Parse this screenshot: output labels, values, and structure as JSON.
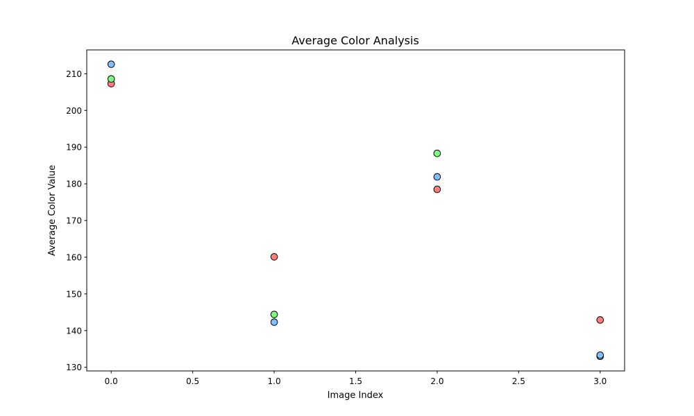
{
  "chart_data": {
    "type": "scatter",
    "title": "Average Color Analysis",
    "xlabel": "Image Index",
    "ylabel": "Average Color Value",
    "xlim": [
      -0.15,
      3.15
    ],
    "ylim": [
      129,
      216.5
    ],
    "xticks": [
      0.0,
      0.5,
      1.0,
      1.5,
      2.0,
      2.5,
      3.0
    ],
    "xtick_labels": [
      "0.0",
      "0.5",
      "1.0",
      "1.5",
      "2.0",
      "2.5",
      "3.0"
    ],
    "yticks": [
      130,
      140,
      150,
      160,
      170,
      180,
      190,
      200,
      210
    ],
    "ytick_labels": [
      "130",
      "140",
      "150",
      "160",
      "170",
      "180",
      "190",
      "200",
      "210"
    ],
    "grid": false,
    "series": [
      {
        "color": "#ff7f7f",
        "x": [
          0,
          1,
          2,
          3
        ],
        "values": [
          207.3,
          160.1,
          178.5,
          142.9
        ]
      },
      {
        "color": "#7fff7f",
        "x": [
          0,
          1,
          2,
          3
        ],
        "values": [
          208.6,
          144.4,
          188.3,
          133.0
        ]
      },
      {
        "color": "#7fbfff",
        "x": [
          0,
          1,
          2,
          3
        ],
        "values": [
          212.6,
          142.3,
          181.9,
          133.3
        ]
      }
    ]
  }
}
